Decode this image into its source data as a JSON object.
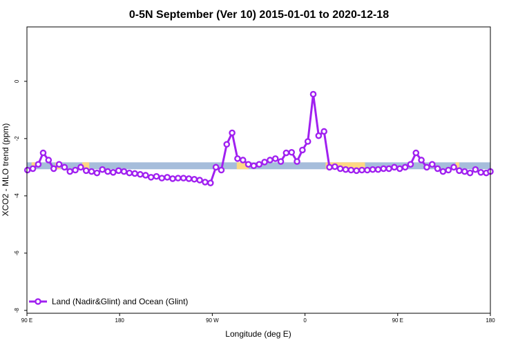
{
  "chart_data": {
    "type": "line",
    "title": "0-5N September (Ver 10)   2015-01-01 to 2020-12-18",
    "xlabel": "Longitude (deg E)",
    "ylabel": "XCO2 - MLO trend (ppm)",
    "xlim": [
      90,
      270
    ],
    "ylim": [
      -8.1,
      1.9
    ],
    "x_ticks": [
      90,
      126,
      162,
      198,
      234,
      270
    ],
    "x_tick_labels": [
      "90 E",
      "180",
      "90 W",
      "0",
      "90 E",
      "180"
    ],
    "y_ticks": [
      0,
      -2,
      -4,
      -6,
      -8
    ],
    "y_tick_labels": [
      "0",
      "-2",
      "-4",
      "-6",
      "-8"
    ],
    "grid": false,
    "legend_position": "bottom-left",
    "band": {
      "y": -2.95,
      "ocean_color": "#a6bddb",
      "land_color": "#fdd883",
      "land_segments": [
        [
          91.8,
          93.2
        ],
        [
          101,
          103
        ],
        [
          111.5,
          114.2
        ],
        [
          171.5,
          176.1
        ],
        [
          206,
          221.3
        ],
        [
          256.5,
          257.9
        ]
      ]
    },
    "series": [
      {
        "name": "Land (Nadir&Glint) and Ocean (Glint)",
        "color": "#a020f0",
        "x": [
          90.2,
          92.3,
          94.4,
          96.3,
          98.4,
          100.4,
          102.5,
          104.6,
          106.7,
          108.8,
          110.9,
          113.0,
          115.1,
          117.2,
          119.3,
          121.4,
          123.5,
          125.6,
          127.7,
          129.8,
          131.9,
          134.0,
          136.1,
          138.2,
          140.3,
          142.4,
          144.5,
          146.6,
          148.7,
          150.8,
          152.9,
          155.0,
          157.1,
          159.2,
          161.3,
          163.4,
          165.5,
          167.6,
          169.7,
          171.8,
          173.9,
          176.0,
          178.1,
          180.2,
          182.3,
          184.4,
          186.5,
          188.6,
          190.7,
          192.8,
          194.9,
          197.0,
          199.1,
          201.2,
          203.3,
          205.4,
          207.5,
          209.6,
          211.7,
          213.8,
          215.9,
          218.0,
          220.1,
          222.2,
          224.3,
          226.4,
          228.5,
          230.6,
          232.7,
          234.8,
          236.9,
          239.0,
          241.1,
          243.2,
          245.3,
          247.4,
          249.5,
          251.6,
          253.7,
          255.8,
          257.9,
          260.0,
          262.1,
          264.2,
          266.3,
          268.4,
          270.0
        ],
        "values": [
          -3.1,
          -3.05,
          -2.9,
          -2.5,
          -2.75,
          -3.05,
          -2.9,
          -3.0,
          -3.15,
          -3.1,
          -3.0,
          -3.12,
          -3.15,
          -3.2,
          -3.08,
          -3.15,
          -3.18,
          -3.12,
          -3.15,
          -3.2,
          -3.22,
          -3.25,
          -3.28,
          -3.35,
          -3.32,
          -3.38,
          -3.35,
          -3.4,
          -3.38,
          -3.38,
          -3.4,
          -3.42,
          -3.45,
          -3.52,
          -3.55,
          -3.0,
          -3.1,
          -2.2,
          -1.8,
          -2.7,
          -2.75,
          -2.9,
          -2.95,
          -2.9,
          -2.82,
          -2.75,
          -2.7,
          -2.8,
          -2.5,
          -2.48,
          -2.8,
          -2.4,
          -2.1,
          -0.45,
          -1.9,
          -1.75,
          -3.0,
          -2.98,
          -3.05,
          -3.08,
          -3.1,
          -3.12,
          -3.1,
          -3.1,
          -3.08,
          -3.08,
          -3.05,
          -3.05,
          -3.0,
          -3.05,
          -3.0,
          -2.9,
          -2.5,
          -2.75,
          -3.0,
          -2.9,
          -3.05,
          -3.15,
          -3.1,
          -3.0,
          -3.12,
          -3.15,
          -3.2,
          -3.08,
          -3.18,
          -3.2,
          -3.15
        ]
      }
    ]
  }
}
